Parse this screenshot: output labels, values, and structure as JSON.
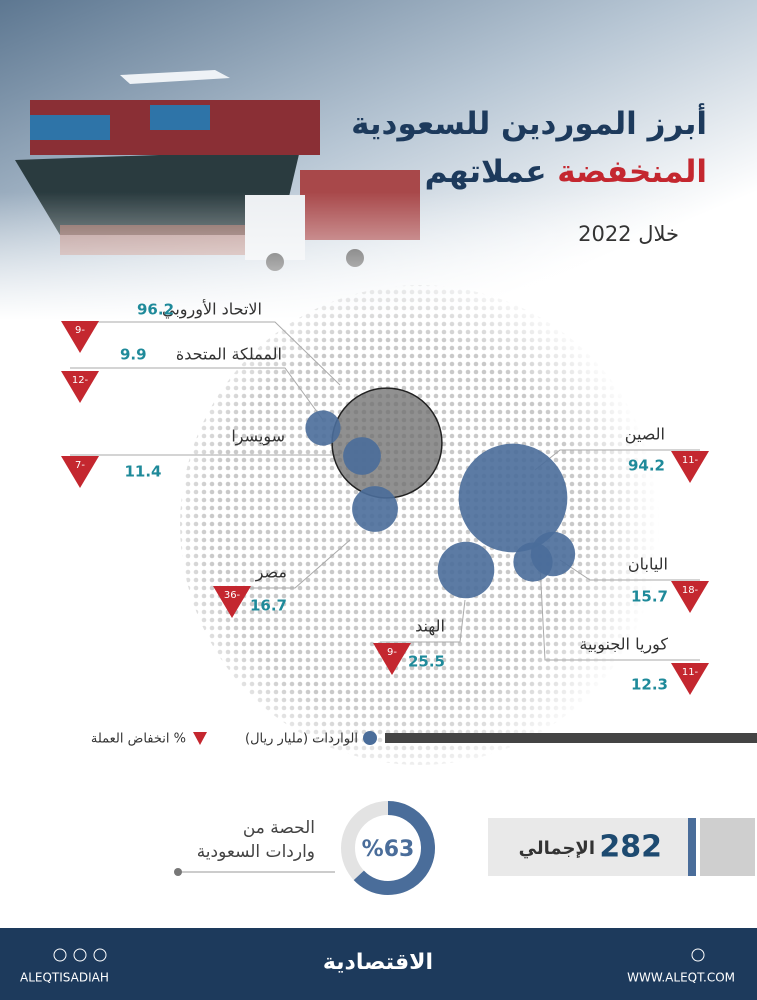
{
  "header": {
    "title_line1": "أبرز الموردين للسعودية",
    "title_highlight": "المنخفضة",
    "title_rest": "عملاتهم",
    "subtitle": "خلال 2022"
  },
  "countries": [
    {
      "name": "الاتحاد الأوروبي",
      "imports": 96.2,
      "currency_drop": "9-"
    },
    {
      "name": "المملكة المتحدة",
      "imports": 9.9,
      "currency_drop": "12-"
    },
    {
      "name": "سويسرا",
      "imports": 11.4,
      "currency_drop": "7-"
    },
    {
      "name": "الصين",
      "imports": 94.2,
      "currency_drop": "11-"
    },
    {
      "name": "اليابان",
      "imports": 15.7,
      "currency_drop": "18-"
    },
    {
      "name": "كوريا الجنوبية",
      "imports": 12.3,
      "currency_drop": "11-"
    },
    {
      "name": "مصر",
      "imports": 16.7,
      "currency_drop": "36-"
    },
    {
      "name": "الهند",
      "imports": 25.5,
      "currency_drop": "9-"
    }
  ],
  "legend": {
    "imports": "الواردات (مليار ريال)",
    "currency_drop": "انخفاض العملة %"
  },
  "total": {
    "label": "الإجمالي",
    "value": 282
  },
  "share": {
    "label_line1": "الحصة من",
    "label_line2": "واردات السعودية",
    "value": 63,
    "value_label": "%63"
  },
  "footer": {
    "handle": "ALEQTISADIAH",
    "brand": "الاقتصادية",
    "website": "WWW.ALEQT.COM"
  }
}
